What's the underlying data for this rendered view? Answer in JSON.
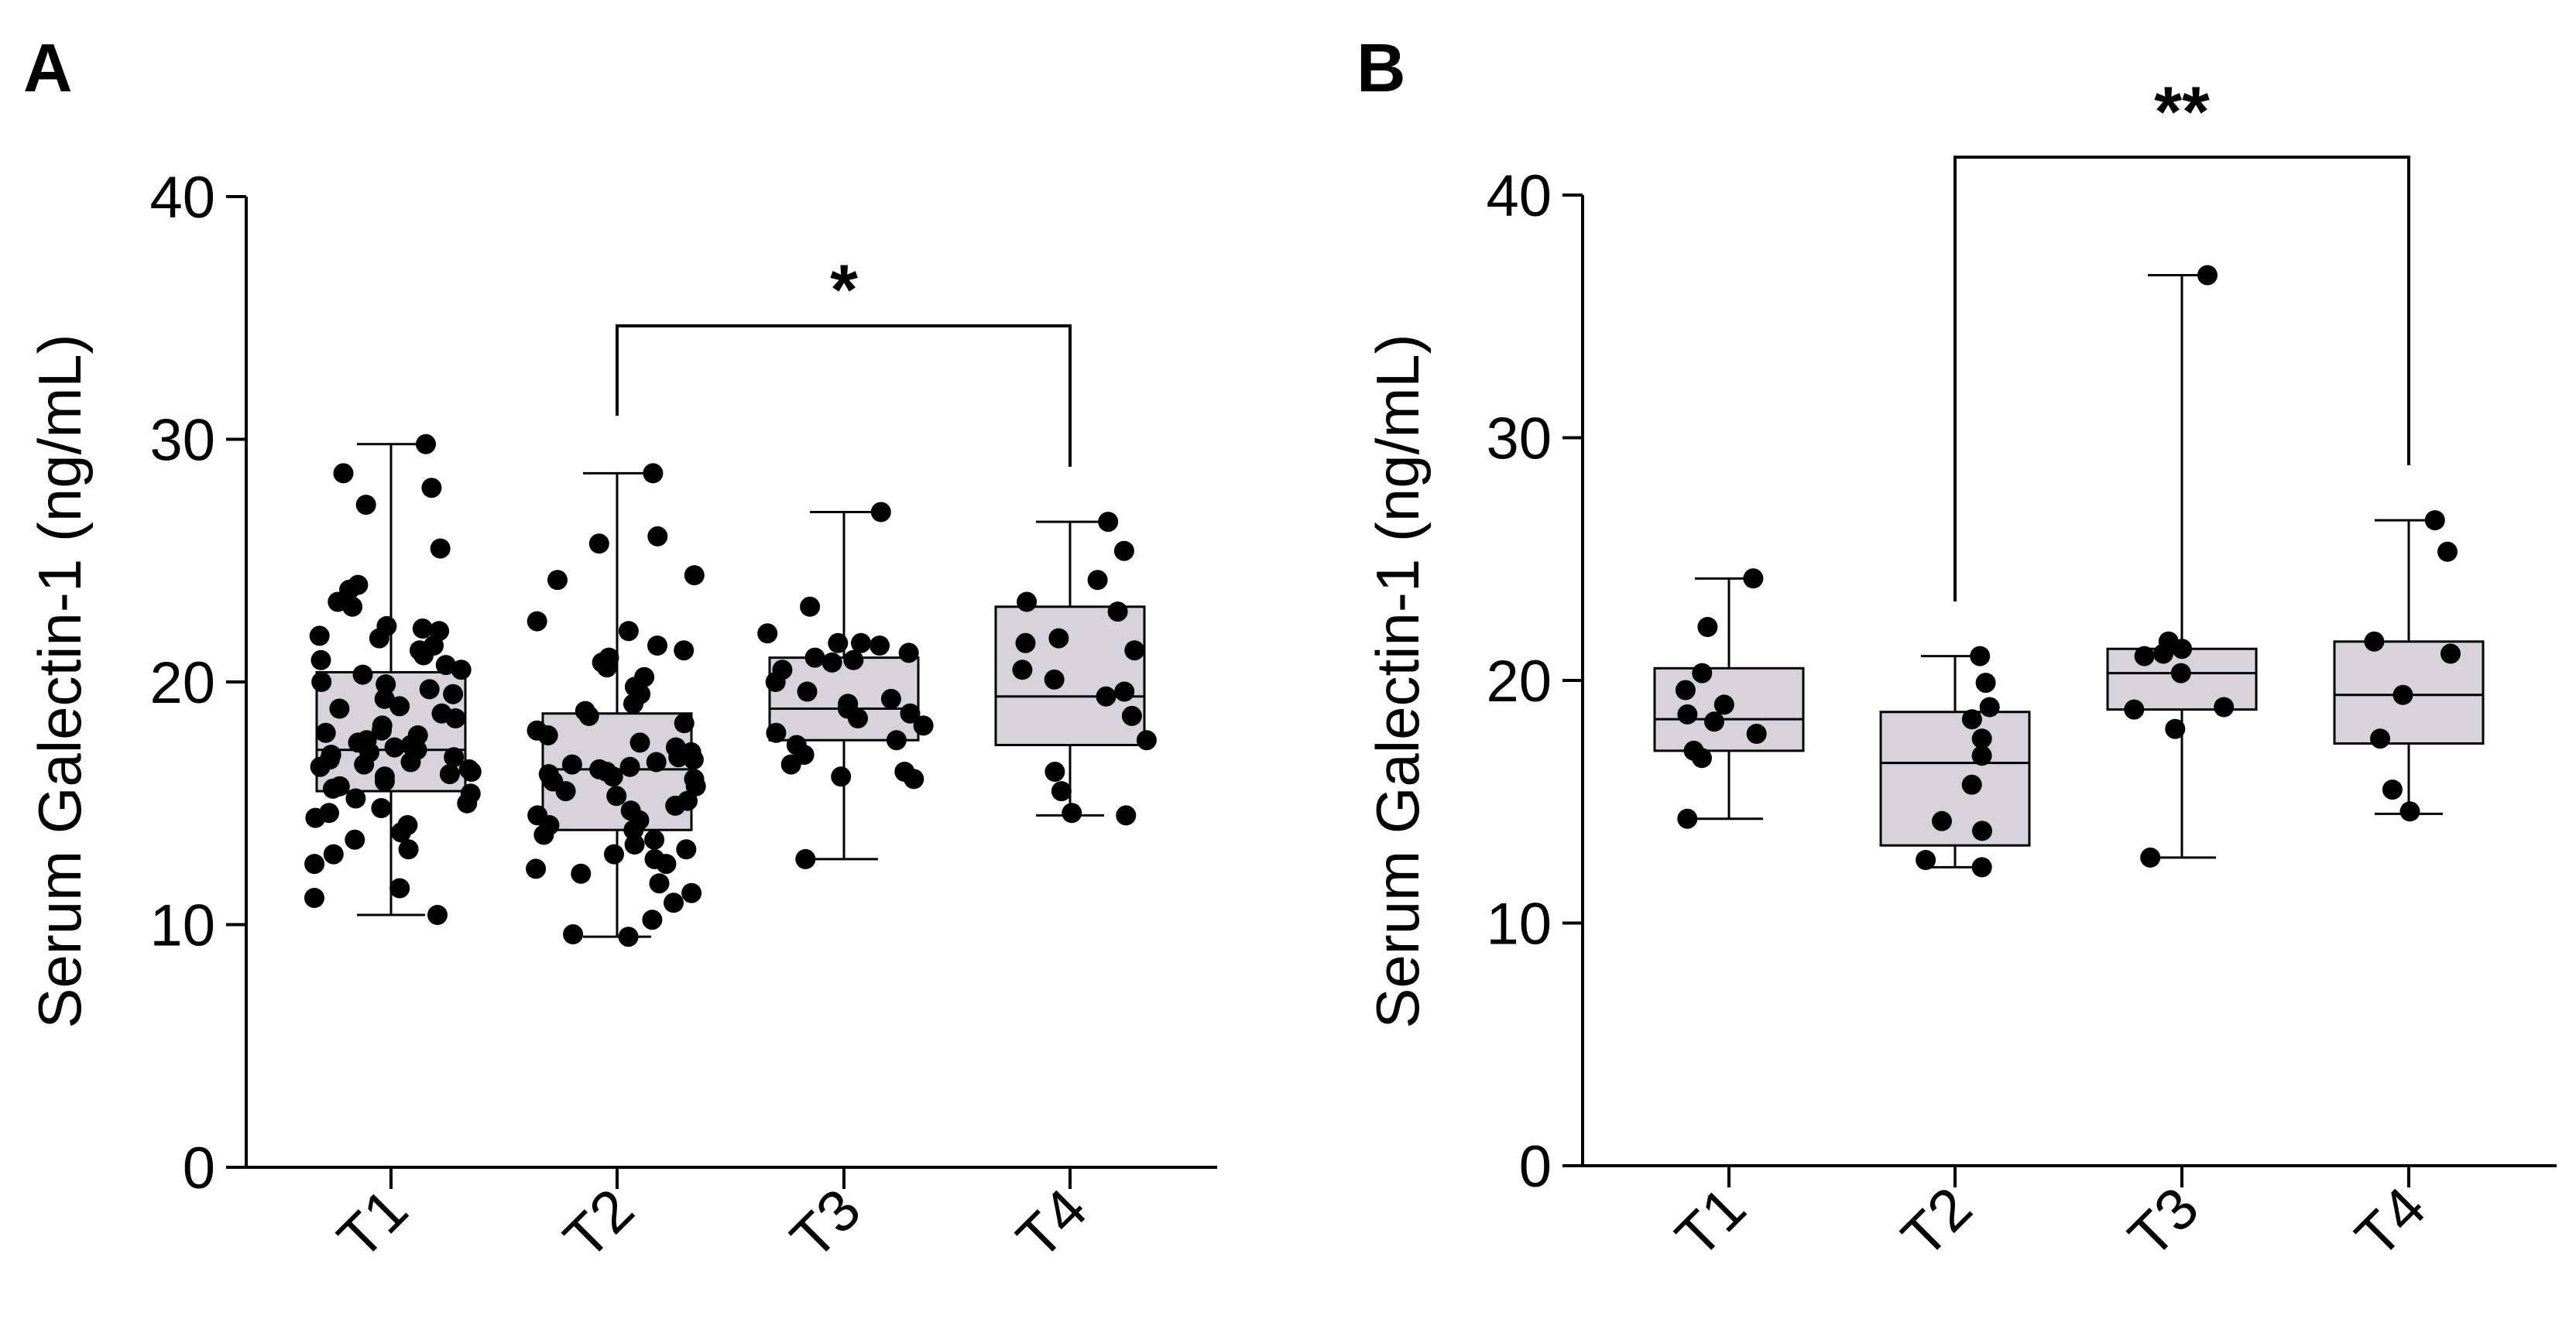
{
  "chart_data": [
    {
      "panel": "A",
      "type": "boxplot",
      "ylabel": "Serum Galectin-1 (ng/mL)",
      "ylim": [
        0,
        40
      ],
      "yticks": [
        0,
        10,
        20,
        30,
        40
      ],
      "categories": [
        "T1",
        "T2",
        "T3",
        "T4"
      ],
      "boxes": [
        {
          "min": 10.4,
          "q1": 15.5,
          "median": 17.2,
          "q3": 20.4,
          "max": 29.8
        },
        {
          "min": 9.5,
          "q1": 13.9,
          "median": 16.4,
          "q3": 18.7,
          "max": 28.6
        },
        {
          "min": 12.7,
          "q1": 17.6,
          "median": 18.9,
          "q3": 21.0,
          "max": 27.0
        },
        {
          "min": 14.5,
          "q1": 17.4,
          "median": 19.4,
          "q3": 23.1,
          "max": 26.6
        }
      ],
      "points": [
        [
          29.8,
          28.6,
          28.0,
          27.3,
          25.5,
          24.0,
          23.8,
          23.3,
          23.1,
          22.3,
          22.2,
          22.1,
          21.9,
          21.8,
          21.5,
          21.3,
          21.1,
          20.9,
          20.7,
          20.5,
          20.3,
          20.0,
          19.9,
          19.7,
          19.5,
          19.3,
          19.0,
          18.9,
          18.7,
          18.5,
          18.2,
          18.0,
          17.9,
          17.8,
          17.6,
          17.5,
          17.4,
          17.3,
          17.2,
          17.1,
          17.0,
          16.9,
          16.8,
          16.7,
          16.6,
          16.5,
          16.4,
          16.3,
          16.2,
          16.1,
          15.9,
          15.7,
          15.6,
          15.4,
          15.2,
          15.0,
          14.8,
          14.6,
          14.4,
          14.1,
          13.8,
          13.5,
          13.1,
          12.9,
          12.5,
          11.5,
          11.1,
          10.4
        ],
        [
          28.6,
          26.0,
          25.7,
          24.4,
          24.2,
          22.5,
          22.1,
          21.5,
          21.3,
          21.0,
          20.8,
          20.6,
          20.2,
          19.8,
          19.5,
          19.1,
          18.8,
          18.6,
          18.3,
          18.0,
          17.8,
          17.5,
          17.3,
          17.1,
          16.9,
          16.8,
          16.7,
          16.6,
          16.5,
          16.4,
          16.3,
          16.2,
          16.1,
          16.0,
          15.9,
          15.7,
          15.5,
          15.3,
          15.1,
          14.9,
          14.7,
          14.5,
          14.3,
          14.1,
          13.9,
          13.7,
          13.5,
          13.3,
          13.1,
          12.9,
          12.7,
          12.5,
          12.3,
          12.1,
          11.7,
          11.3,
          10.9,
          10.2,
          9.6,
          9.5
        ],
        [
          27.0,
          23.1,
          22.0,
          21.6,
          21.6,
          21.5,
          21.2,
          21.0,
          20.9,
          20.8,
          20.5,
          20.0,
          19.6,
          19.3,
          19.1,
          18.9,
          18.7,
          18.5,
          18.2,
          17.9,
          17.6,
          17.4,
          17.0,
          16.6,
          16.3,
          16.1,
          16.0,
          12.7
        ],
        [
          26.6,
          25.4,
          24.2,
          23.3,
          22.9,
          21.8,
          21.6,
          21.3,
          20.5,
          20.1,
          19.6,
          19.4,
          18.6,
          17.6,
          16.3,
          15.5,
          14.6,
          14.5
        ]
      ],
      "significance": {
        "from": "T2",
        "to": "T4",
        "label": "*"
      }
    },
    {
      "panel": "B",
      "type": "boxplot",
      "ylabel": "Serum Galectin-1 (ng/mL)",
      "ylim": [
        0,
        40
      ],
      "yticks": [
        0,
        10,
        20,
        30,
        40
      ],
      "categories": [
        "T1",
        "T2",
        "T3",
        "T4"
      ],
      "boxes": [
        {
          "min": 14.3,
          "q1": 17.1,
          "median": 18.4,
          "q3": 20.5,
          "max": 24.2
        },
        {
          "min": 12.3,
          "q1": 13.2,
          "median": 16.6,
          "q3": 18.7,
          "max": 21.0
        },
        {
          "min": 12.7,
          "q1": 18.8,
          "median": 20.3,
          "q3": 21.3,
          "max": 36.7
        },
        {
          "min": 14.5,
          "q1": 17.4,
          "median": 19.4,
          "q3": 21.6,
          "max": 26.6
        }
      ],
      "points": [
        [
          24.2,
          22.2,
          20.3,
          19.6,
          19.0,
          18.6,
          18.3,
          17.8,
          17.1,
          16.8,
          14.3
        ],
        [
          21.0,
          19.9,
          18.9,
          18.4,
          17.6,
          16.9,
          15.7,
          14.2,
          13.8,
          12.6,
          12.3
        ],
        [
          36.7,
          21.6,
          21.3,
          21.1,
          21.0,
          20.3,
          18.8,
          18.9,
          18.0,
          12.7
        ],
        [
          26.6,
          25.3,
          21.6,
          21.1,
          19.4,
          17.6,
          15.5,
          14.6
        ]
      ],
      "significance": {
        "from": "T2",
        "to": "T4",
        "label": "**"
      }
    }
  ]
}
